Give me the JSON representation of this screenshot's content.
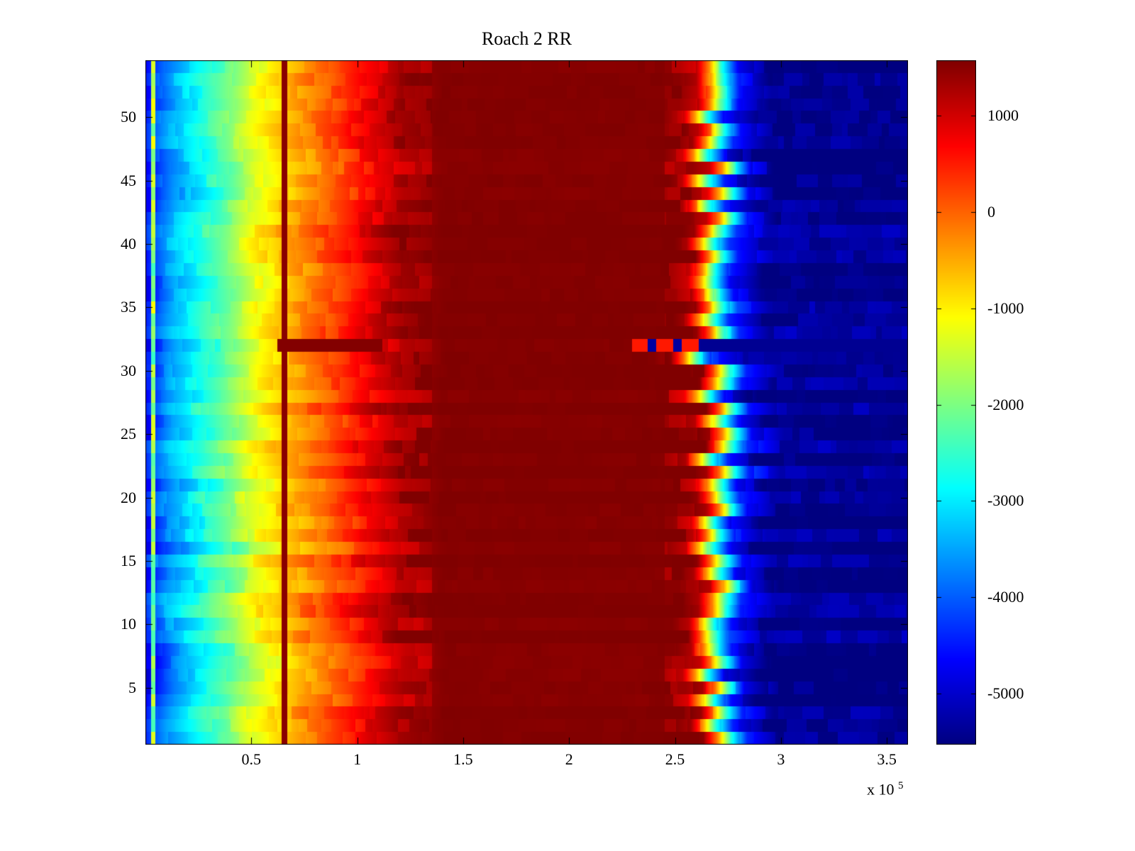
{
  "chart_data": {
    "type": "heatmap",
    "title": "Roach 2 RR",
    "colormap": "jet",
    "x_range": [
      0,
      3.6
    ],
    "x_unit_exponent_prefix": "x 10",
    "x_unit_exponent": "5",
    "x_ticks": [
      {
        "value": 0.5,
        "label": "0.5"
      },
      {
        "value": 1.0,
        "label": "1"
      },
      {
        "value": 1.5,
        "label": "1.5"
      },
      {
        "value": 2.0,
        "label": "2"
      },
      {
        "value": 2.5,
        "label": "2.5"
      },
      {
        "value": 3.0,
        "label": "3"
      },
      {
        "value": 3.5,
        "label": "3.5"
      }
    ],
    "y_range": [
      1,
      54
    ],
    "rows": 54,
    "y_ticks": [
      {
        "value": 50,
        "label": "50"
      },
      {
        "value": 45,
        "label": "45"
      },
      {
        "value": 40,
        "label": "40"
      },
      {
        "value": 35,
        "label": "35"
      },
      {
        "value": 30,
        "label": "30"
      },
      {
        "value": 25,
        "label": "25"
      },
      {
        "value": 20,
        "label": "20"
      },
      {
        "value": 15,
        "label": "15"
      },
      {
        "value": 10,
        "label": "10"
      },
      {
        "value": 5,
        "label": "5"
      }
    ],
    "color_axis": [
      -5530,
      1575
    ],
    "colorbar_ticks": [
      {
        "value": 1000,
        "label": "1000"
      },
      {
        "value": 0,
        "label": "0"
      },
      {
        "value": -1000,
        "label": "-1000"
      },
      {
        "value": -2000,
        "label": "-2000"
      },
      {
        "value": -3000,
        "label": "-3000"
      },
      {
        "value": -4000,
        "label": "-4000"
      },
      {
        "value": -5000,
        "label": "-5000"
      }
    ],
    "profile_x": [
      0,
      0.05,
      0.12,
      0.25,
      0.4,
      0.5,
      0.62,
      0.75,
      0.9,
      1.05,
      1.2,
      1.4,
      2.52,
      2.6,
      2.66,
      2.72,
      2.8,
      2.95,
      3.6
    ],
    "profile_value": [
      -4600,
      -4100,
      -3500,
      -2800,
      -2000,
      -1300,
      -800,
      -300,
      200,
      800,
      1300,
      1550,
      1550,
      1250,
      -200,
      -2400,
      -4500,
      -5400,
      -5450
    ],
    "features": {
      "left_line": {
        "x0": 0.027,
        "x1": 0.045,
        "value_base": -2500,
        "value_jitter": 1400
      },
      "red_line": {
        "x0": 0.645,
        "x1": 0.67,
        "value": 1500
      },
      "anomaly_rows": {
        "streak_row": 32,
        "streak_x": [
          0.62,
          1.12
        ],
        "dropout_x": [
          2.3,
          2.62
        ],
        "shift_row": 31,
        "shift": -0.12
      }
    },
    "texture": {
      "row_offset_amp": 520,
      "chunk_amp": 420,
      "left_shift_amp": 0.06,
      "right_shift_amp": 0.14
    }
  }
}
